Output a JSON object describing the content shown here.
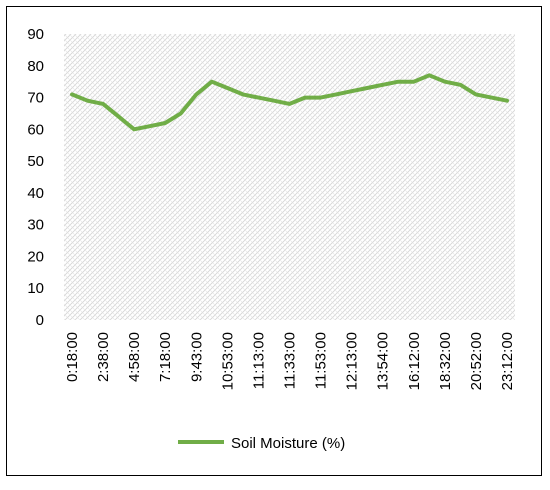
{
  "chart_data": {
    "type": "line",
    "title": "",
    "xlabel": "",
    "ylabel": "",
    "ylim": [
      0,
      90
    ],
    "y_ticks": [
      0,
      10,
      20,
      30,
      40,
      50,
      60,
      70,
      80,
      90
    ],
    "grid": "diagonal-hatch",
    "legend_position": "bottom",
    "x_tick_labels": [
      "0:18:00",
      "2:38:00",
      "4:58:00",
      "7:18:00",
      "9:43:00",
      "10:53:00",
      "11:13:00",
      "11:33:00",
      "11:53:00",
      "12:13:00",
      "13:54:00",
      "16:12:00",
      "18:32:00",
      "20:52:00",
      "23:12:00"
    ],
    "series": [
      {
        "name": "Soil Moisture (%)",
        "color": "#70AD47",
        "values": [
          71,
          69,
          68,
          64,
          60,
          61,
          62,
          65,
          71,
          75,
          73,
          71,
          70,
          69,
          68,
          70,
          70,
          71,
          72,
          73,
          74,
          75,
          75,
          77,
          75,
          74,
          71,
          70,
          69
        ]
      }
    ]
  }
}
